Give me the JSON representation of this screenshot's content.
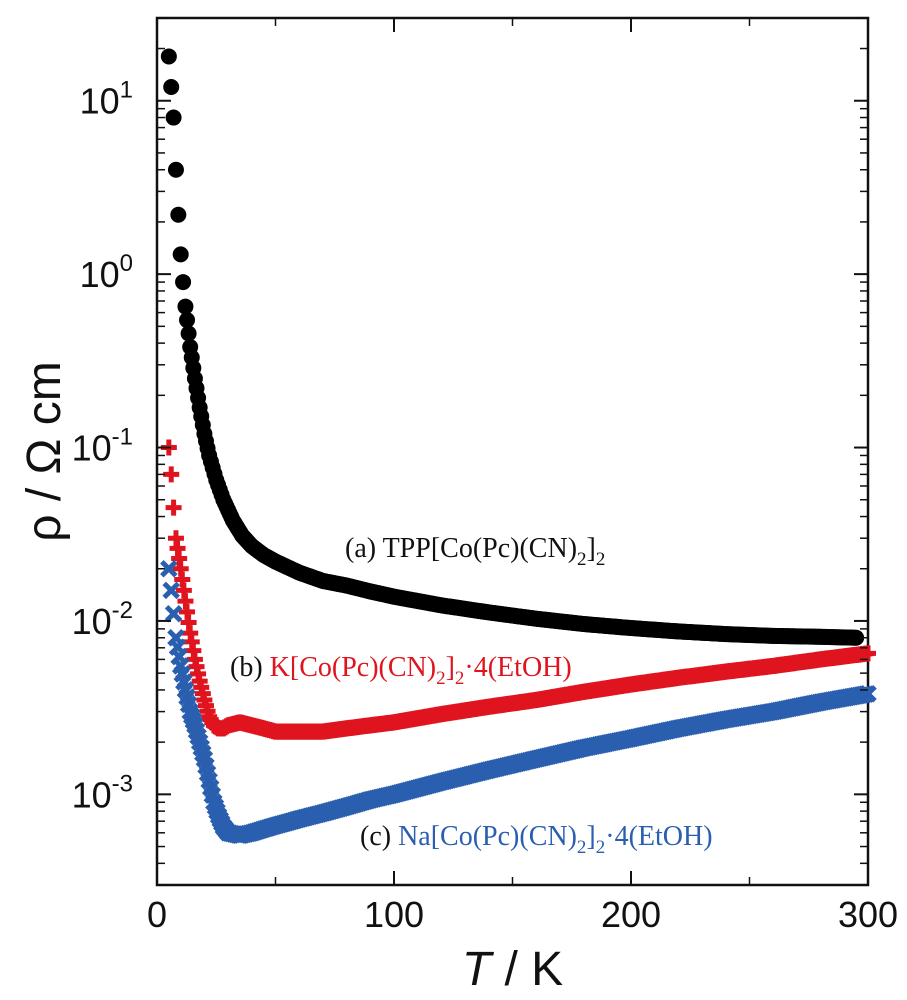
{
  "chart_data": {
    "type": "scatter",
    "title": "",
    "xlabel_italic": "T",
    "xlabel_rest": " / K",
    "ylabel": "ρ / Ω cm",
    "xlim": [
      0,
      300
    ],
    "ylim": [
      0.0003,
      30
    ],
    "yscale": "log",
    "x_ticks": [
      0,
      100,
      200,
      300
    ],
    "x_tick_labels": [
      "0",
      "100",
      "200",
      "300"
    ],
    "y_ticks": [
      0.001,
      0.01,
      0.1,
      1,
      10
    ],
    "y_tick_labels": [
      {
        "base": "10",
        "exp": "-3"
      },
      {
        "base": "10",
        "exp": "-2"
      },
      {
        "base": "10",
        "exp": "-1"
      },
      {
        "base": "10",
        "exp": "0"
      },
      {
        "base": "10",
        "exp": "1"
      }
    ],
    "series": [
      {
        "id": "a",
        "name": "TPP[Co(Pc)(CN)2]2",
        "label_prefix": "(a) ",
        "label_parts": [
          "TPP[Co(Pc)(CN)",
          "2",
          "]",
          "2"
        ],
        "color": "#000000",
        "marker": "circle",
        "points": [
          [
            5,
            18
          ],
          [
            6,
            12
          ],
          [
            7,
            8
          ],
          [
            8,
            4
          ],
          [
            9,
            2.2
          ],
          [
            10,
            1.3
          ],
          [
            11,
            0.9
          ],
          [
            12,
            0.65
          ],
          [
            14,
            0.38
          ],
          [
            16,
            0.25
          ],
          [
            18,
            0.17
          ],
          [
            20,
            0.12
          ],
          [
            22,
            0.09
          ],
          [
            25,
            0.065
          ],
          [
            28,
            0.05
          ],
          [
            32,
            0.038
          ],
          [
            36,
            0.031
          ],
          [
            40,
            0.027
          ],
          [
            45,
            0.024
          ],
          [
            50,
            0.022
          ],
          [
            60,
            0.019
          ],
          [
            70,
            0.017
          ],
          [
            80,
            0.016
          ],
          [
            90,
            0.0148
          ],
          [
            100,
            0.0138
          ],
          [
            120,
            0.0123
          ],
          [
            140,
            0.0112
          ],
          [
            160,
            0.0103
          ],
          [
            180,
            0.0096
          ],
          [
            200,
            0.0091
          ],
          [
            220,
            0.0087
          ],
          [
            240,
            0.0084
          ],
          [
            260,
            0.0082
          ],
          [
            280,
            0.0081
          ],
          [
            295,
            0.008
          ]
        ]
      },
      {
        "id": "b",
        "name": "K[Co(Pc)(CN)2]2·4(EtOH)",
        "label_prefix": "(b) ",
        "label_parts": [
          "K[Co(Pc)(CN)",
          "2",
          "]",
          "2",
          "·4(EtOH)"
        ],
        "color": "#e0141e",
        "marker": "plus",
        "points": [
          [
            5,
            0.1
          ],
          [
            6,
            0.07
          ],
          [
            7,
            0.045
          ],
          [
            8,
            0.03
          ],
          [
            10,
            0.02
          ],
          [
            12,
            0.013
          ],
          [
            14,
            0.0085
          ],
          [
            16,
            0.006
          ],
          [
            18,
            0.0045
          ],
          [
            20,
            0.0035
          ],
          [
            22,
            0.0028
          ],
          [
            24,
            0.0025
          ],
          [
            26,
            0.0024
          ],
          [
            28,
            0.0024
          ],
          [
            30,
            0.0025
          ],
          [
            35,
            0.0026
          ],
          [
            40,
            0.0025
          ],
          [
            45,
            0.0024
          ],
          [
            50,
            0.0023
          ],
          [
            60,
            0.0023
          ],
          [
            70,
            0.0023
          ],
          [
            80,
            0.0024
          ],
          [
            90,
            0.0025
          ],
          [
            100,
            0.0026
          ],
          [
            120,
            0.0029
          ],
          [
            140,
            0.0032
          ],
          [
            160,
            0.0035
          ],
          [
            180,
            0.0039
          ],
          [
            200,
            0.0043
          ],
          [
            220,
            0.0047
          ],
          [
            240,
            0.0051
          ],
          [
            260,
            0.0055
          ],
          [
            280,
            0.006
          ],
          [
            300,
            0.0065
          ]
        ]
      },
      {
        "id": "c",
        "name": "Na[Co(Pc)(CN)2]2·4(EtOH)",
        "label_prefix": "(c) ",
        "label_parts": [
          "Na[Co(Pc)(CN)",
          "2",
          "]",
          "2",
          "·4(EtOH)"
        ],
        "color": "#2a5fb0",
        "marker": "cross",
        "points": [
          [
            5,
            0.02
          ],
          [
            6,
            0.015
          ],
          [
            7,
            0.011
          ],
          [
            8,
            0.008
          ],
          [
            10,
            0.0055
          ],
          [
            12,
            0.004
          ],
          [
            14,
            0.003
          ],
          [
            16,
            0.0025
          ],
          [
            18,
            0.002
          ],
          [
            20,
            0.0016
          ],
          [
            22,
            0.0012
          ],
          [
            24,
            0.0009
          ],
          [
            26,
            0.00075
          ],
          [
            28,
            0.00065
          ],
          [
            30,
            0.0006
          ],
          [
            35,
            0.00058
          ],
          [
            40,
            0.0006
          ],
          [
            45,
            0.00063
          ],
          [
            50,
            0.00066
          ],
          [
            60,
            0.00072
          ],
          [
            70,
            0.00078
          ],
          [
            80,
            0.00085
          ],
          [
            90,
            0.00093
          ],
          [
            100,
            0.001
          ],
          [
            120,
            0.00118
          ],
          [
            140,
            0.00138
          ],
          [
            160,
            0.0016
          ],
          [
            180,
            0.00185
          ],
          [
            200,
            0.0021
          ],
          [
            220,
            0.0024
          ],
          [
            240,
            0.0027
          ],
          [
            260,
            0.003
          ],
          [
            280,
            0.0034
          ],
          [
            300,
            0.0038
          ]
        ]
      }
    ]
  }
}
